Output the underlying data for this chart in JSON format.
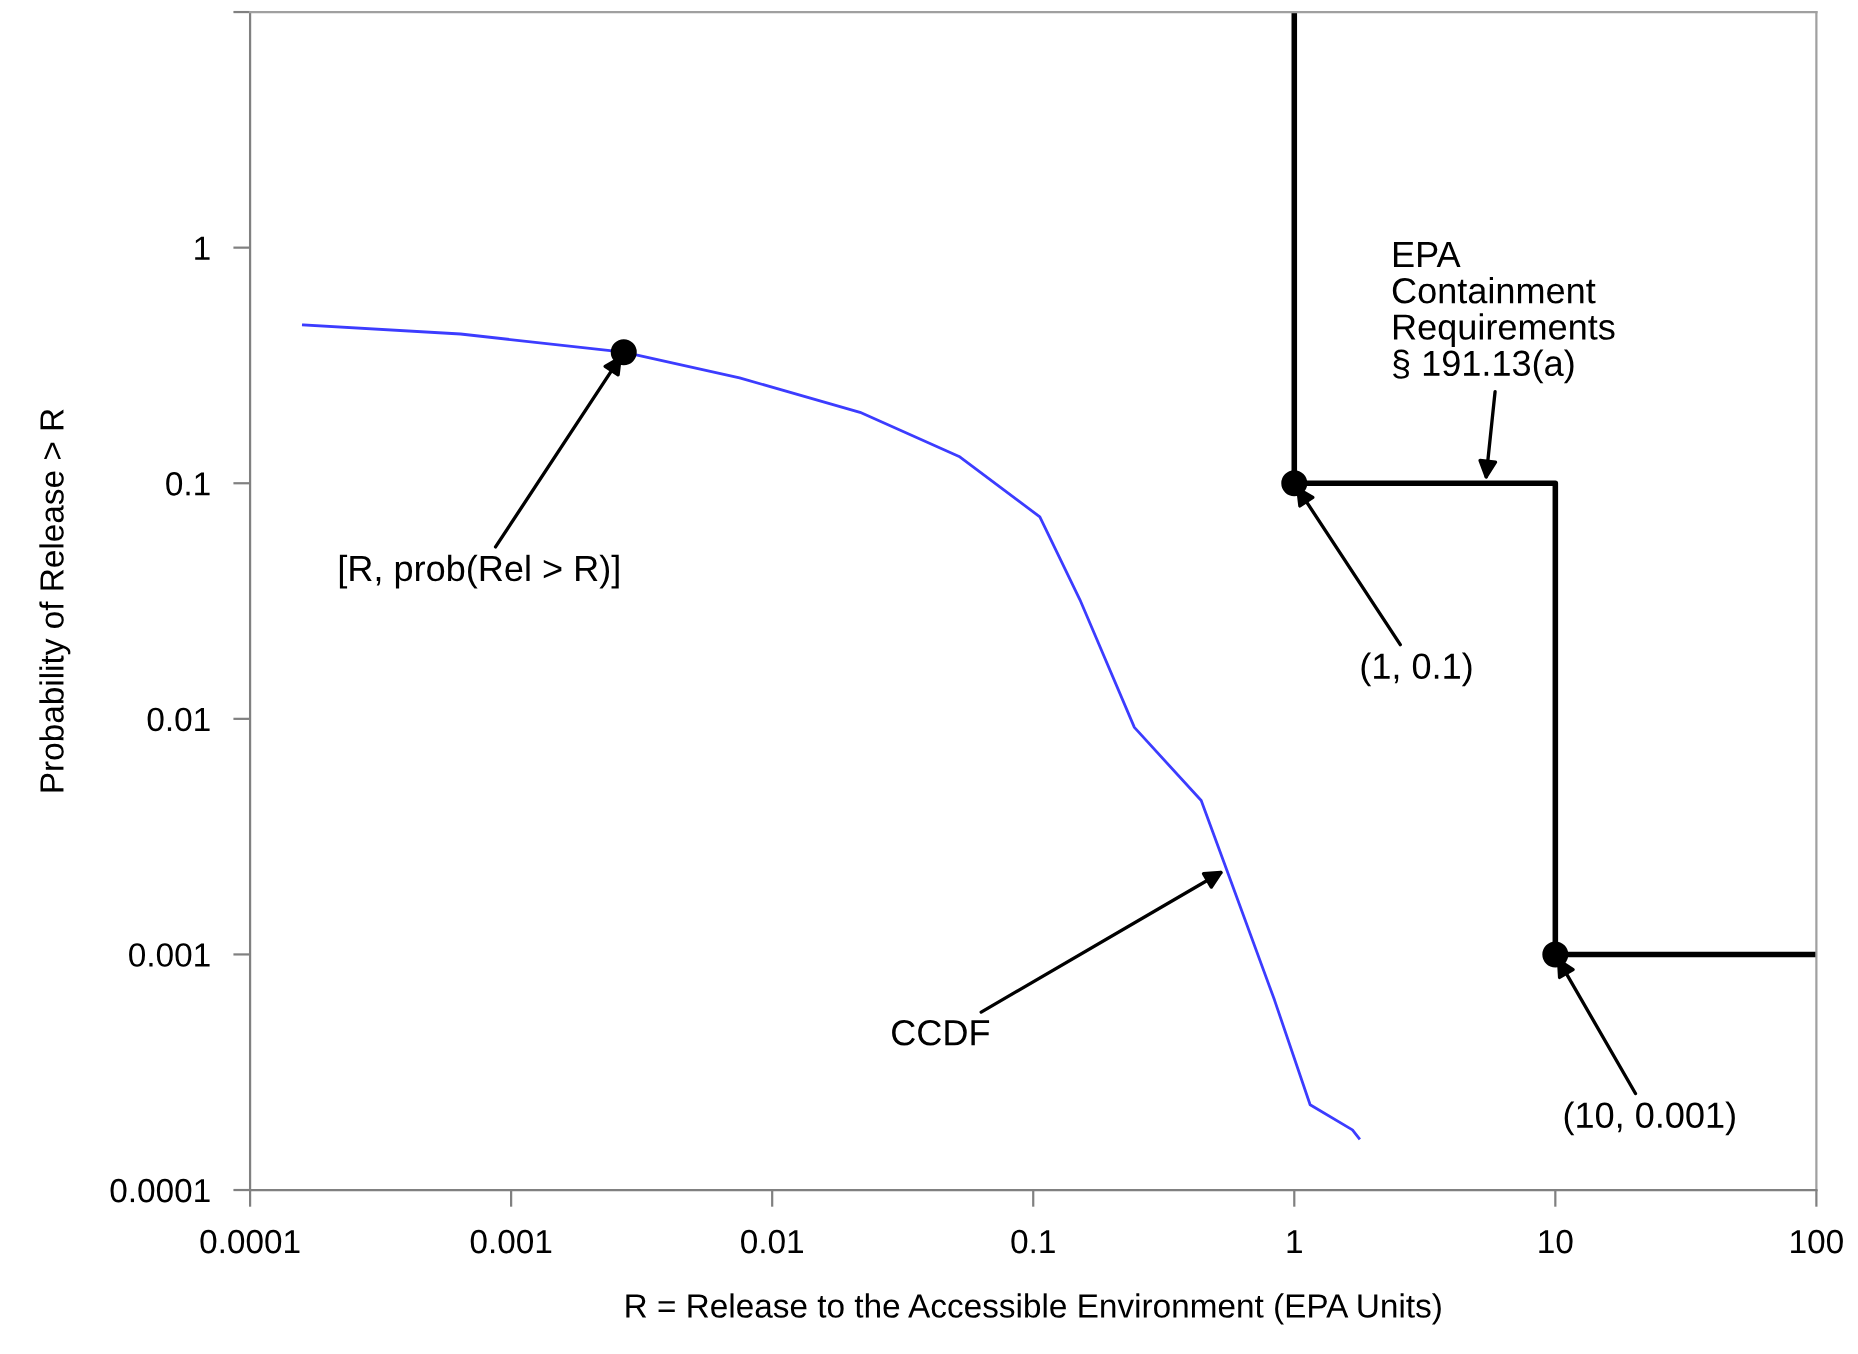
{
  "chart_data": {
    "type": "line",
    "xlabel": "R = Release to the Accessible Environment (EPA Units)",
    "ylabel": "Probability of Release > R",
    "log": "xy",
    "xlim": [
      0.0001,
      100
    ],
    "xticks": [
      0.0001,
      0.001,
      0.01,
      0.1,
      1,
      10,
      100
    ],
    "ylim": [
      0.0001,
      10
    ],
    "yticks": [
      0.0001,
      0.001,
      0.01,
      0.1,
      1,
      {
        "value": 10,
        "label": null
      }
    ],
    "grid": false,
    "series": [
      {
        "color": "#3c3cff",
        "x": [
          0.00016,
          0.00064,
          0.0027,
          0.0075,
          0.0217,
          0.052,
          0.106,
          0.151,
          0.244,
          0.44,
          0.55,
          0.84,
          1.15,
          1.67,
          1.77
        ],
        "values": [
          0.47,
          0.43,
          0.36,
          0.28,
          0.2,
          0.13,
          0.072,
          0.032,
          0.0092,
          0.0045,
          0.0023,
          0.00064,
          0.00023,
          0.00018,
          0.000166
        ]
      },
      {
        "color": "#000000",
        "x": [
          1,
          1,
          10,
          10,
          100
        ],
        "values": [
          10,
          0.1,
          0.1,
          0.001,
          0.001
        ]
      },
      {
        "type": "scatter",
        "color": "#000000",
        "marker": "circle",
        "x": [
          0.0027,
          1,
          10
        ],
        "values": [
          0.36,
          0.1,
          0.001
        ]
      }
    ],
    "annotations": [
      {
        "text": "[R, prob(Rel > R)]",
        "x": 0.0027,
        "y": 0.36
      },
      {
        "text": "CCDF",
        "x": 0.55,
        "y": 0.0023
      },
      {
        "text": "(1, 0.1)",
        "x": 1,
        "y": 0.1
      },
      {
        "text": "(10, 0.001)",
        "x": 10,
        "y": 0.001
      },
      {
        "text": "EPA\nContainment\nRequirements\n§ 191.13(a)",
        "x": 5.4,
        "y": 0.1
      }
    ]
  }
}
